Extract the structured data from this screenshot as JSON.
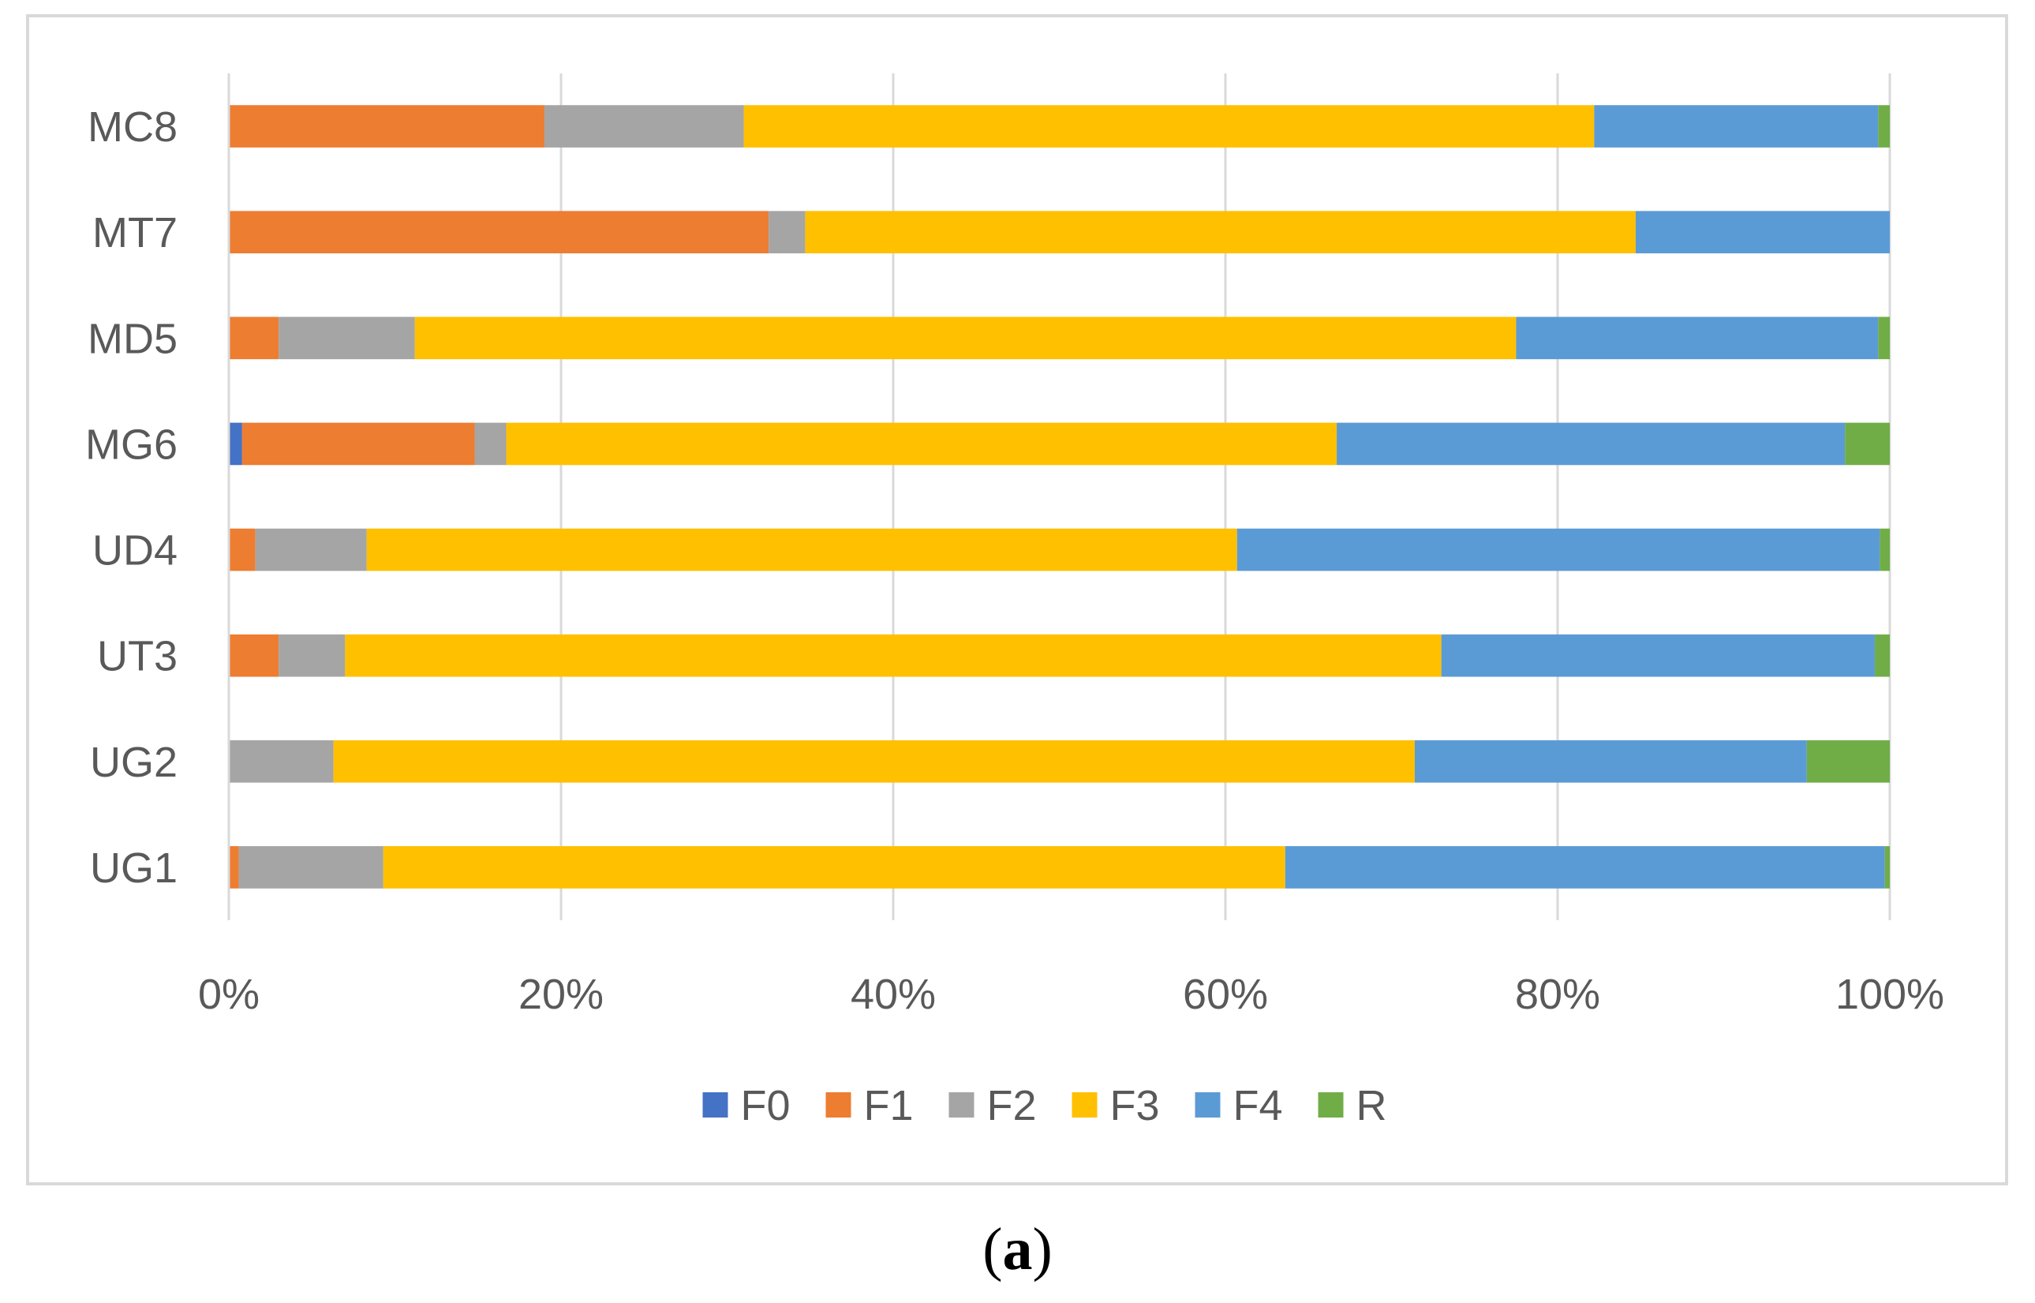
{
  "caption": {
    "open": "(",
    "letter": "a",
    "close": ")"
  },
  "chart_data": {
    "type": "bar",
    "orientation": "horizontal",
    "stacked": "percent",
    "title": "",
    "xlabel": "",
    "ylabel": "",
    "xlim": [
      0,
      100
    ],
    "grid": true,
    "legend_position": "bottom",
    "x_ticks": [
      "0%",
      "20%",
      "40%",
      "60%",
      "80%",
      "100%"
    ],
    "categories": [
      "UG1",
      "UG2",
      "UT3",
      "UD4",
      "MG6",
      "MD5",
      "MT7",
      "MC8"
    ],
    "series": [
      {
        "name": "F0",
        "color": "#4472c4",
        "values": [
          0,
          0,
          0,
          0,
          0.8,
          0,
          0,
          0
        ]
      },
      {
        "name": "F1",
        "color": "#ed7d31",
        "values": [
          0.6,
          0,
          3,
          1.6,
          14,
          3,
          32.5,
          19
        ]
      },
      {
        "name": "F2",
        "color": "#a5a5a5",
        "values": [
          8.7,
          6.3,
          4,
          6.7,
          1.9,
          8.2,
          2.2,
          12
        ]
      },
      {
        "name": "F3",
        "color": "#ffc000",
        "values": [
          54.3,
          65.1,
          66,
          52.4,
          50,
          66.3,
          50,
          51.2
        ]
      },
      {
        "name": "F4",
        "color": "#5b9bd5",
        "values": [
          36.1,
          23.6,
          26.1,
          38.7,
          30.6,
          21.8,
          15.3,
          17.1
        ]
      },
      {
        "name": "R",
        "color": "#70ad47",
        "values": [
          0.3,
          5,
          0.9,
          0.6,
          2.7,
          0.7,
          0,
          0.7
        ]
      }
    ]
  }
}
